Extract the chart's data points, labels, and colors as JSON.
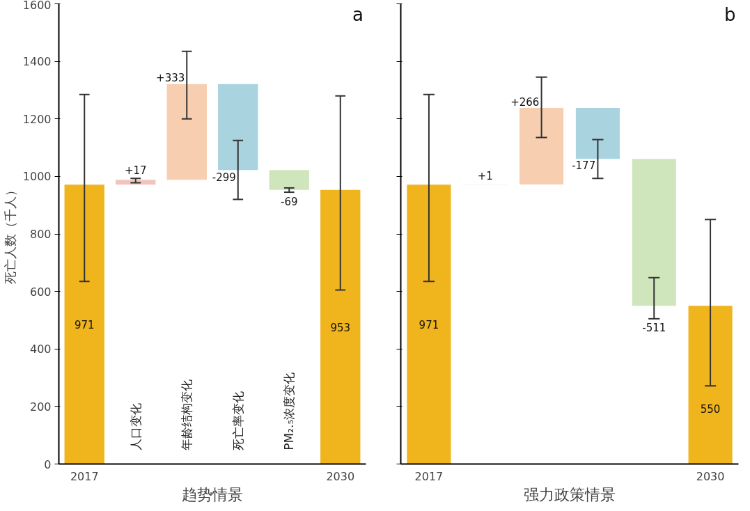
{
  "chart_data": [
    {
      "type": "bar",
      "annotations": [
        "a"
      ],
      "xlabel": "趋势情景",
      "ylabel": "死亡人数（千人）",
      "categories": [
        "2017",
        "人口变化",
        "年龄结构变化",
        "死亡率变化",
        "PM₂.₅浓度变化",
        "2030"
      ],
      "values": [
        971,
        17,
        333,
        -299,
        -69,
        953
      ],
      "base": [
        0,
        971,
        988,
        1321,
        1022,
        0
      ],
      "colors": [
        "#f0b41c",
        "#f2c4bf",
        "#f7cfb0",
        "#a9d3df",
        "#cfe6bc",
        "#f0b41c"
      ],
      "errors": [
        [
          635,
          1285
        ],
        [
          978,
          993
        ],
        [
          1200,
          1435
        ],
        [
          920,
          1125
        ],
        [
          945,
          960
        ],
        [
          605,
          1280
        ]
      ],
      "value_labels": [
        "971",
        "+17",
        "+333",
        "-299",
        "-69",
        "953"
      ],
      "ylim": [
        0,
        1600
      ],
      "yticks": [
        0,
        200,
        400,
        600,
        800,
        1000,
        1200,
        1400,
        1600
      ],
      "grid": false
    },
    {
      "type": "bar",
      "annotations": [
        "b"
      ],
      "xlabel": "强力政策情景",
      "categories": [
        "2017",
        null,
        null,
        null,
        null,
        "2030"
      ],
      "values": [
        971,
        1,
        266,
        -177,
        -511,
        550
      ],
      "base": [
        0,
        971,
        972,
        1238,
        1061,
        0
      ],
      "colors": [
        "#f0b41c",
        "#f2c4bf",
        "#f7cfb0",
        "#a9d3df",
        "#cfe6bc",
        "#f0b41c"
      ],
      "errors": [
        [
          635,
          1285
        ],
        null,
        [
          1135,
          1345
        ],
        [
          993,
          1128
        ],
        [
          505,
          648
        ],
        [
          272,
          850
        ]
      ],
      "value_labels": [
        "971",
        "+1",
        "+266",
        "-177",
        "-511",
        "550"
      ],
      "ylim": [
        0,
        1600
      ],
      "yticks": [
        0,
        200,
        400,
        600,
        800,
        1000,
        1200,
        1400,
        1600
      ],
      "tick_labels": "x",
      "grid": false
    }
  ]
}
